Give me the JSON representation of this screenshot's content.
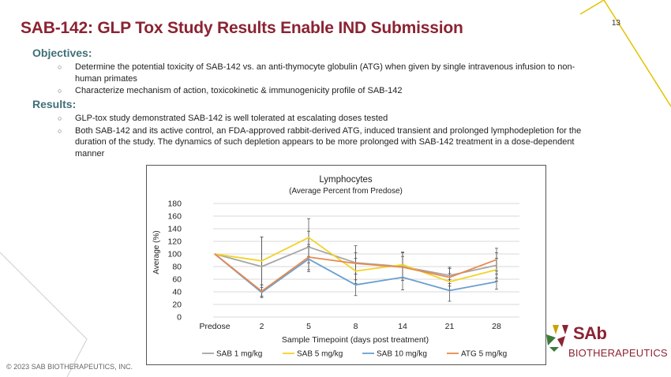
{
  "page": {
    "number": "13",
    "title": "SAB-142: GLP Tox Study Results Enable IND Submission",
    "copyright": "© 2023 SAB BIOTHERAPEUTICS, INC."
  },
  "objectives": {
    "heading": "Objectives:",
    "items": [
      "Determine the potential toxicity of SAB-142 vs. an anti-thymocyte globulin (ATG) when given by single intravenous infusion to non-human primates",
      "Characterize mechanism of action, toxicokinetic & immunogenicity profile of SAB-142"
    ]
  },
  "results": {
    "heading": "Results:",
    "items": [
      "GLP-tox study demonstrated SAB-142 is well tolerated at escalating doses tested",
      "Both SAB-142 and its active control, an FDA-approved rabbit-derived ATG, induced transient and prolonged lymphodepletion for the duration of the study. The dynamics of such depletion appears to be more prolonged with SAB-142 treatment in a dose-dependent manner"
    ]
  },
  "logo": {
    "mark": "SAb",
    "text": "BIOTHERAPEUTICS",
    "colors": [
      "#8b2332",
      "#c8a400",
      "#3d7a3a"
    ]
  },
  "chart_data": {
    "type": "line",
    "title": "Lymphocytes",
    "subtitle": "(Average Percent from Predose)",
    "xlabel": "Sample Timepoint (days post treatment)",
    "ylabel": "Average (%)",
    "categories": [
      "Predose",
      "2",
      "5",
      "8",
      "14",
      "21",
      "28"
    ],
    "ylim": [
      0,
      180
    ],
    "yticks": [
      0,
      20,
      40,
      60,
      80,
      100,
      120,
      140,
      160,
      180
    ],
    "grid": true,
    "legend": "bottom",
    "series": [
      {
        "name": "SAB 1 mg/kg",
        "color": "#a5a5a5",
        "values": [
          100,
          80,
          111,
          86,
          80,
          66,
          82
        ],
        "err": [
          0,
          47,
          25,
          27,
          22,
          13,
          20
        ]
      },
      {
        "name": "SAB 5 mg/kg",
        "color": "#f2d324",
        "values": [
          100,
          89,
          126,
          73,
          83,
          56,
          75
        ],
        "err": [
          0,
          38,
          30,
          20,
          20,
          13,
          18
        ]
      },
      {
        "name": "SAB 10 mg/kg",
        "color": "#6a9fd0",
        "values": [
          100,
          39,
          92,
          51,
          63,
          42,
          56
        ],
        "err": [
          0,
          8,
          20,
          17,
          20,
          17,
          12
        ]
      },
      {
        "name": "ATG 5 mg/kg",
        "color": "#e8894e",
        "values": [
          100,
          41,
          95,
          85,
          79,
          63,
          91
        ],
        "err": [
          0,
          10,
          20,
          17,
          17,
          14,
          18
        ]
      }
    ]
  }
}
